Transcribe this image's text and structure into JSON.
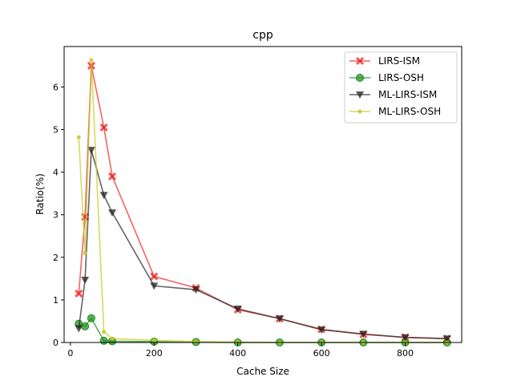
{
  "chart_data": {
    "type": "line",
    "title": "cpp",
    "xlabel": "Cache Size",
    "ylabel": "Ratio(%)",
    "xlim": [
      -15,
      935
    ],
    "ylim": [
      0,
      6.95
    ],
    "xticks": [
      0,
      200,
      400,
      600,
      800
    ],
    "yticks": [
      0,
      1,
      2,
      3,
      4,
      5,
      6
    ],
    "grid": false,
    "legend_position": "top-right",
    "series": [
      {
        "name": "LIRS-ISM",
        "color": "#ee2222",
        "marker": "x-filled",
        "x": [
          20,
          35,
          50,
          80,
          100,
          200,
          300,
          400,
          500,
          600,
          700,
          800,
          900
        ],
        "y": [
          1.15,
          2.95,
          6.5,
          5.05,
          3.9,
          1.55,
          1.28,
          0.77,
          0.56,
          0.31,
          0.19,
          0.12,
          0.09
        ]
      },
      {
        "name": "LIRS-OSH",
        "color": "#1a8c1a",
        "marker": "circle",
        "x": [
          20,
          35,
          50,
          80,
          100,
          200,
          300,
          400,
          500,
          600,
          700,
          800,
          900
        ],
        "y": [
          0.44,
          0.38,
          0.57,
          0.04,
          0.03,
          0.02,
          0.01,
          0.0,
          0.0,
          0.0,
          0.0,
          0.0,
          0.0
        ]
      },
      {
        "name": "ML-LIRS-ISM",
        "color": "#222222",
        "marker": "triangle-down",
        "x": [
          20,
          35,
          50,
          80,
          100,
          200,
          300,
          400,
          500,
          600,
          700,
          800,
          900
        ],
        "y": [
          0.33,
          1.47,
          4.52,
          3.46,
          3.05,
          1.33,
          1.24,
          0.79,
          0.56,
          0.3,
          0.2,
          0.12,
          0.09
        ]
      },
      {
        "name": "ML-LIRS-OSH",
        "color": "#c8c822",
        "marker": "point",
        "x": [
          20,
          35,
          50,
          80,
          100,
          200,
          300,
          400,
          500,
          600,
          700,
          800,
          900
        ],
        "y": [
          4.82,
          2.1,
          6.63,
          0.25,
          0.09,
          0.05,
          0.02,
          0.01,
          0.0,
          0.0,
          0.0,
          0.0,
          0.0
        ]
      }
    ]
  }
}
